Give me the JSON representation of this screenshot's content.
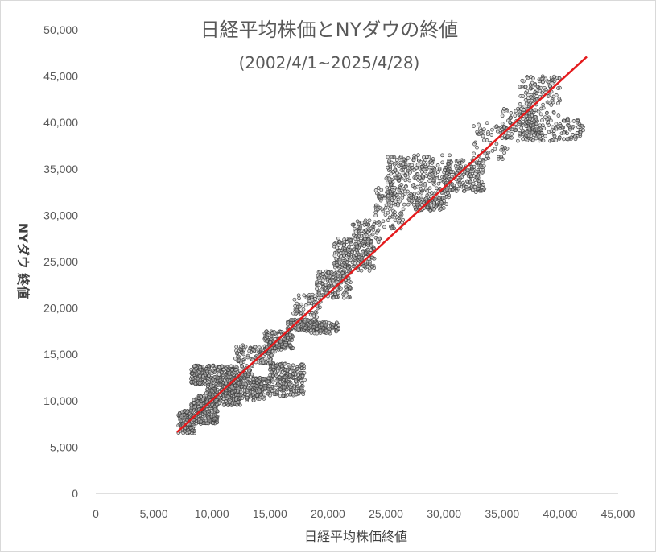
{
  "chart_data": {
    "type": "scatter",
    "title": "日経平均株価とNYダウの終値",
    "subtitle": "(2002/4/1~2025/4/28)",
    "xlabel": "日経平均株価終値",
    "ylabel": "NYダウ 終値",
    "xlim": [
      0,
      45000
    ],
    "ylim": [
      0,
      50000
    ],
    "x_ticks": [
      "0",
      "5,000",
      "10,000",
      "15,000",
      "20,000",
      "25,000",
      "30,000",
      "35,000",
      "40,000",
      "45,000"
    ],
    "y_ticks": [
      "0",
      "5,000",
      "10,000",
      "15,000",
      "20,000",
      "25,000",
      "30,000",
      "35,000",
      "40,000",
      "45,000",
      "50,000"
    ],
    "grid": false,
    "marker_color": "#404040",
    "trendline_color": "#e41a1c",
    "trendline": {
      "x": [
        7000,
        42300
      ],
      "y": [
        6600,
        47100
      ]
    },
    "clusters": [
      {
        "x": [
          7100,
          8500
        ],
        "y": [
          6500,
          9000
        ],
        "n": 120
      },
      {
        "x": [
          8200,
          10500
        ],
        "y": [
          7500,
          10500
        ],
        "n": 260
      },
      {
        "x": [
          8200,
          9800
        ],
        "y": [
          11800,
          13800
        ],
        "n": 130
      },
      {
        "x": [
          9500,
          12500
        ],
        "y": [
          9500,
          12500
        ],
        "n": 260
      },
      {
        "x": [
          10000,
          13500
        ],
        "y": [
          12500,
          13800
        ],
        "n": 110
      },
      {
        "x": [
          11500,
          14500
        ],
        "y": [
          10000,
          12500
        ],
        "n": 180
      },
      {
        "x": [
          13500,
          18000
        ],
        "y": [
          10500,
          12500
        ],
        "n": 200
      },
      {
        "x": [
          15000,
          18000
        ],
        "y": [
          12500,
          14000
        ],
        "n": 120
      },
      {
        "x": [
          12000,
          15500
        ],
        "y": [
          14000,
          16000
        ],
        "n": 110
      },
      {
        "x": [
          14500,
          17000
        ],
        "y": [
          15500,
          17500
        ],
        "n": 140
      },
      {
        "x": [
          16500,
          19000
        ],
        "y": [
          17500,
          18800
        ],
        "n": 110
      },
      {
        "x": [
          18500,
          21000
        ],
        "y": [
          17200,
          18500
        ],
        "n": 90
      },
      {
        "x": [
          17000,
          19500
        ],
        "y": [
          19000,
          21500
        ],
        "n": 60
      },
      {
        "x": [
          19000,
          22000
        ],
        "y": [
          21000,
          24000
        ],
        "n": 140
      },
      {
        "x": [
          20500,
          24000
        ],
        "y": [
          24000,
          27500
        ],
        "n": 220
      },
      {
        "x": [
          22000,
          24500
        ],
        "y": [
          27000,
          29500
        ],
        "n": 70
      },
      {
        "x": [
          24000,
          26500
        ],
        "y": [
          28500,
          33000
        ],
        "n": 80
      },
      {
        "x": [
          25000,
          30500
        ],
        "y": [
          31000,
          36500
        ],
        "n": 300
      },
      {
        "x": [
          27500,
          30000
        ],
        "y": [
          30500,
          32000
        ],
        "n": 70
      },
      {
        "x": [
          30000,
          33500
        ],
        "y": [
          32500,
          36000
        ],
        "n": 180
      },
      {
        "x": [
          32500,
          35500
        ],
        "y": [
          36000,
          40000
        ],
        "n": 60
      },
      {
        "x": [
          35000,
          38000
        ],
        "y": [
          38000,
          41500
        ],
        "n": 100
      },
      {
        "x": [
          36500,
          40000
        ],
        "y": [
          40500,
          45000
        ],
        "n": 130
      },
      {
        "x": [
          37000,
          42000
        ],
        "y": [
          38000,
          40500
        ],
        "n": 140
      }
    ]
  }
}
